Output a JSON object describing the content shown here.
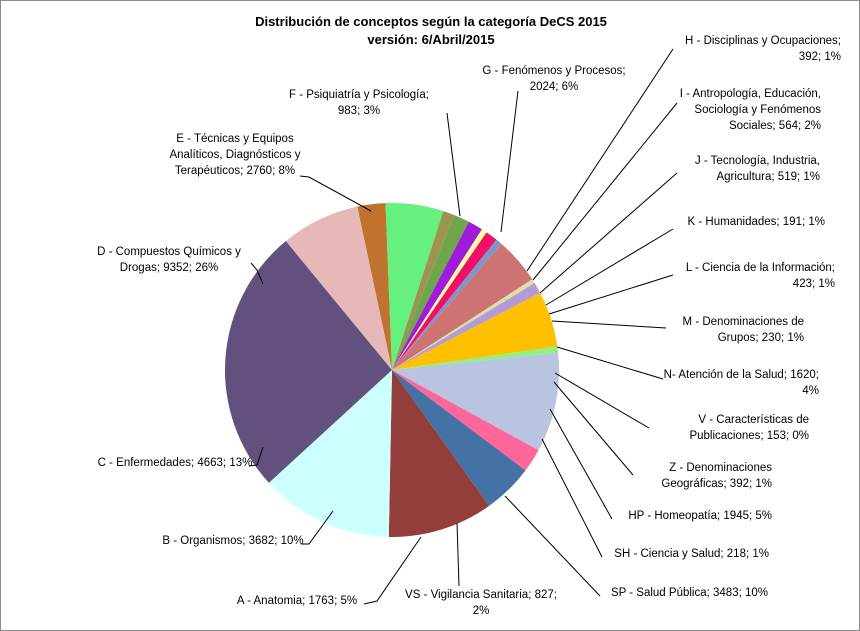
{
  "chart_data": {
    "type": "pie",
    "title": "Distribución de conceptos según la categoría DeCS 2015",
    "subtitle": "versión: 6/Abril/2015",
    "start_angle_deg": -12,
    "slices": [
      {
        "id": "F",
        "value": 983,
        "color": "#C0722F",
        "label_lines": [
          "F - Psiquiatría y Psicología;",
          "983; 3%"
        ]
      },
      {
        "id": "G",
        "value": 2024,
        "color": "#66F07E",
        "label_lines": [
          "G - Fenómenos  y Procesos;",
          "2024; 6%"
        ]
      },
      {
        "id": "H",
        "value": 392,
        "color": "#9C9550",
        "label_lines": [
          "H - Disciplinas y Ocupaciones;",
          "392; 1%"
        ]
      },
      {
        "id": "I",
        "value": 564,
        "color": "#6FA64B",
        "label_lines": [
          "I - Antropología, Educación,",
          "Sociología y Fenómenos",
          "Sociales; 564; 2%"
        ]
      },
      {
        "id": "J",
        "value": 519,
        "color": "#A01ADB",
        "label_lines": [
          "J - Tecnología, Industria,",
          "Agricultura; 519; 1%"
        ]
      },
      {
        "id": "K",
        "value": 191,
        "color": "#FFFFA0",
        "label_lines": [
          "K - Humanidades; 191; 1%"
        ]
      },
      {
        "id": "L",
        "value": 423,
        "color": "#F0106A",
        "label_lines": [
          "L - Ciencia de la Información;",
          "423; 1%"
        ]
      },
      {
        "id": "M",
        "value": 230,
        "color": "#7E96C8",
        "label_lines": [
          "M - Denominaciones de",
          "Grupos; 230; 1%"
        ]
      },
      {
        "id": "N",
        "value": 1620,
        "color": "#CE7373",
        "label_lines": [
          "N- Atención de la Salud; 1620;",
          "4%"
        ]
      },
      {
        "id": "V",
        "value": 153,
        "color": "#D9E2A3",
        "label_lines": [
          "V - Características de",
          "Publicaciones; 153; 0%"
        ]
      },
      {
        "id": "Z",
        "value": 392,
        "color": "#B59BD5",
        "label_lines": [
          "Z - Denominaciones",
          "Geográficas; 392; 1%"
        ]
      },
      {
        "id": "HP",
        "value": 1945,
        "color": "#FFC000",
        "label_lines": [
          "HP - Homeopatía;  1945; 5%"
        ]
      },
      {
        "id": "SH",
        "value": 218,
        "color": "#92F080",
        "label_lines": [
          "SH - Ciencia y Salud; 218; 1%"
        ]
      },
      {
        "id": "SP",
        "value": 3483,
        "color": "#B8C4E0",
        "label_lines": [
          "SP - Salud Pública; 3483; 10%"
        ]
      },
      {
        "id": "VS",
        "value": 827,
        "color": "#FF6699",
        "label_lines": [
          "VS - Vigilancia Sanitaria; 827;",
          "2%"
        ]
      },
      {
        "id": "A",
        "value": 1763,
        "color": "#4472A4",
        "label_lines": [
          "A - Anatomia; 1763; 5%"
        ]
      },
      {
        "id": "B",
        "value": 3682,
        "color": "#943E3C",
        "label_lines": [
          "B - Organismos; 3682; 10%"
        ]
      },
      {
        "id": "C",
        "value": 4663,
        "color": "#CCFFFF",
        "label_lines": [
          "C - Enfermedades;  4663; 13%"
        ]
      },
      {
        "id": "D",
        "value": 9352,
        "color": "#62517F",
        "label_lines": [
          "D - Compuestos  Químicos y",
          "Drogas; 9352; 26%"
        ]
      },
      {
        "id": "E",
        "value": 2760,
        "color": "#E6B9B8",
        "label_lines": [
          "E - Técnicas y Equipos",
          "Analíticos, Diagnósticos y",
          "Terapéuticos; 2760; 8%"
        ]
      }
    ]
  }
}
